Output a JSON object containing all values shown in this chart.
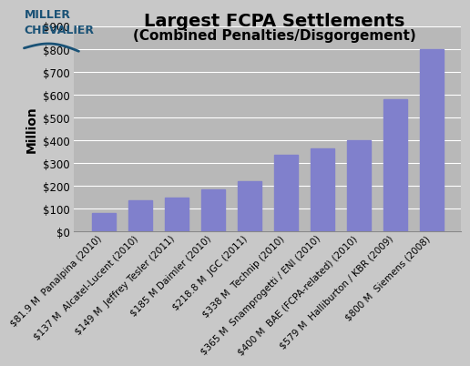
{
  "title": "Largest FCPA Settlements",
  "subtitle": "(Combined Penalties/Disgorgement)",
  "ylabel": "Million",
  "categories": [
    "$81.9 M  Panalpina (2010)",
    "$137 M  Alcatel-Lucent (2010)",
    "$149 M  Jeffrey Tesler (2011)",
    "$185 M Daimler (2010)",
    "$218.8 M  JGC (2011)",
    "$338 M  Technip (2010)",
    "$365 M  Snamprogetti / ENI (2010)",
    "$400 M  BAE (FCPA-related) (2010)",
    "$579 M  Halliburton / KBR (2009)",
    "$800 M  Siemens (2008)"
  ],
  "values": [
    81.9,
    137,
    149,
    185,
    218.8,
    338,
    365,
    400,
    579,
    800
  ],
  "bar_color": "#8080cc",
  "bar_edge_color": "#8080cc",
  "fig_bg_color": "#c8c8c8",
  "plot_bg_color": "#b8b8b8",
  "ylim": [
    0,
    900
  ],
  "yticks": [
    0,
    100,
    200,
    300,
    400,
    500,
    600,
    700,
    800,
    900
  ],
  "ytick_labels": [
    "$0",
    "$100",
    "$200",
    "$300",
    "$400",
    "$500",
    "$600",
    "$700",
    "$800",
    "$900"
  ],
  "grid_color": "#ffffff",
  "title_fontsize": 14,
  "subtitle_fontsize": 11,
  "ylabel_fontsize": 10,
  "tick_fontsize": 8.5,
  "xtick_fontsize": 7.5,
  "logo_line1": "Miller",
  "logo_line2": "Chevalier",
  "logo_color": "#1a5276",
  "logo_fontsize": 9
}
